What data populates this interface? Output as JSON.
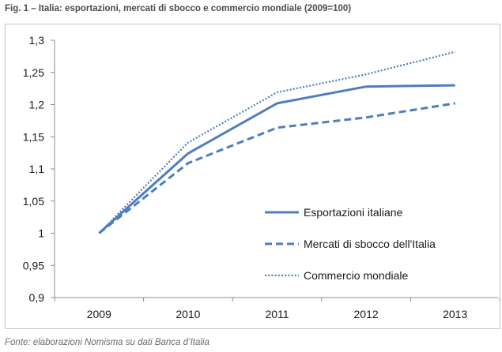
{
  "figure": {
    "title": "Fig. 1 – Italia: esportazioni, mercati di sbocco e commercio mondiale (2009=100)",
    "source": "Fonte: elaborazioni Nomisma su dati Banca d’Italia"
  },
  "colors": {
    "series": "#4f7dbd",
    "axis": "#8c8c8c",
    "text": "#1a1a1a"
  },
  "chart_data": {
    "type": "line",
    "title": "Fig. 1 – Italia: esportazioni, mercati di sbocco e commercio mondiale (2009=100)",
    "categories": [
      "2009",
      "2010",
      "2011",
      "2012",
      "2013"
    ],
    "ylim": [
      0.9,
      1.3
    ],
    "yticks": [
      0.9,
      0.95,
      1,
      1.05,
      1.1,
      1.15,
      1.2,
      1.25,
      1.3
    ],
    "ytick_labels": [
      "0,9",
      "0,95",
      "1",
      "1,05",
      "1,1",
      "1,15",
      "1,2",
      "1,25",
      "1,3"
    ],
    "grid": false,
    "legend": "inside-right",
    "series": [
      {
        "name": "Esportazioni italiane",
        "style": "solid",
        "values": [
          1.0,
          1.124,
          1.202,
          1.228,
          1.23
        ]
      },
      {
        "name": "Mercati di sbocco dell'Italia",
        "style": "dashed",
        "values": [
          1.0,
          1.109,
          1.164,
          1.18,
          1.202
        ]
      },
      {
        "name": "Commercio mondiale",
        "style": "dotted",
        "values": [
          1.0,
          1.141,
          1.219,
          1.247,
          1.282
        ]
      }
    ]
  }
}
